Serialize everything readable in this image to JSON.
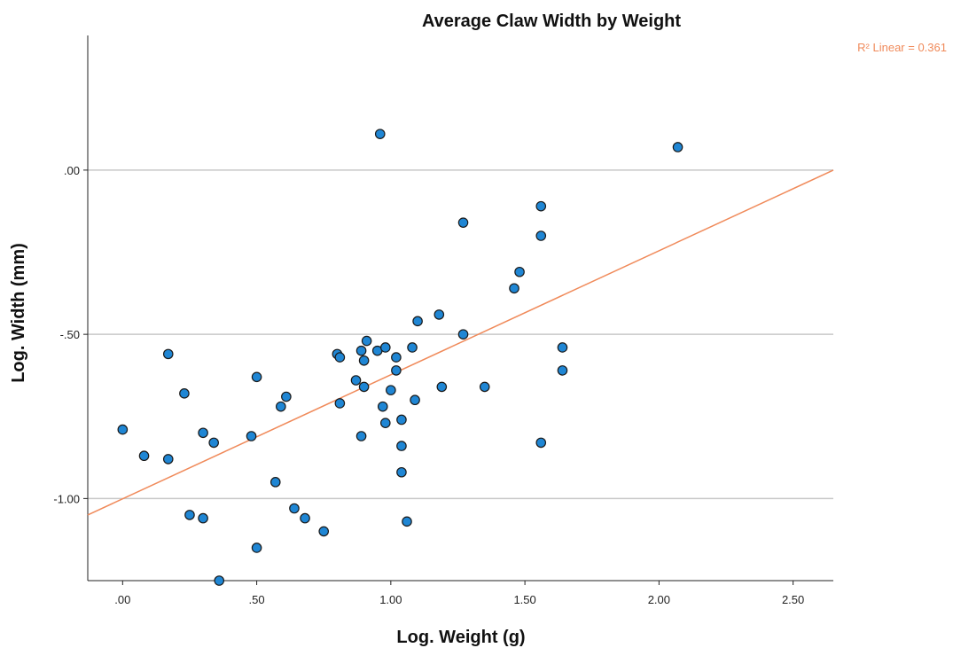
{
  "chart_data": {
    "type": "scatter",
    "title": "Average Claw Width by Weight",
    "xlabel": "Log. Weight (g)",
    "ylabel": "Log. Width (mm)",
    "xlim": [
      -0.13,
      2.65
    ],
    "ylim": [
      -1.25,
      0.41
    ],
    "x_ticks": [
      0.0,
      0.5,
      1.0,
      1.5,
      2.0,
      2.5
    ],
    "x_tick_labels": [
      ".00",
      ".50",
      "1.00",
      "1.50",
      "2.00",
      "2.50"
    ],
    "y_ticks": [
      0.0,
      -0.5,
      -1.0
    ],
    "y_tick_labels": [
      ".00",
      "-.50",
      "-1.00"
    ],
    "grid": "horizontal",
    "point_color": "#1f86d4",
    "point_edge_color": "#1a1a1a",
    "fit_line": {
      "type": "linear",
      "label": "R² Linear = 0.361",
      "color": "#f08a5a",
      "x": [
        -0.13,
        2.65
      ],
      "y": [
        -1.05,
        0.0
      ]
    },
    "points": [
      {
        "x": 0.0,
        "y": -0.79
      },
      {
        "x": 0.08,
        "y": -0.87
      },
      {
        "x": 0.17,
        "y": -0.88
      },
      {
        "x": 0.17,
        "y": -0.56
      },
      {
        "x": 0.23,
        "y": -0.68
      },
      {
        "x": 0.25,
        "y": -1.05
      },
      {
        "x": 0.3,
        "y": -1.06
      },
      {
        "x": 0.3,
        "y": -0.8
      },
      {
        "x": 0.34,
        "y": -0.83
      },
      {
        "x": 0.36,
        "y": -1.25
      },
      {
        "x": 0.48,
        "y": -0.81
      },
      {
        "x": 0.5,
        "y": -1.15
      },
      {
        "x": 0.5,
        "y": -0.63
      },
      {
        "x": 0.57,
        "y": -0.95
      },
      {
        "x": 0.59,
        "y": -0.72
      },
      {
        "x": 0.61,
        "y": -0.69
      },
      {
        "x": 0.64,
        "y": -1.03
      },
      {
        "x": 0.68,
        "y": -1.06
      },
      {
        "x": 0.75,
        "y": -1.1
      },
      {
        "x": 0.8,
        "y": -0.56
      },
      {
        "x": 0.81,
        "y": -0.57
      },
      {
        "x": 0.81,
        "y": -0.71
      },
      {
        "x": 0.87,
        "y": -0.64
      },
      {
        "x": 0.89,
        "y": -0.55
      },
      {
        "x": 0.89,
        "y": -0.81
      },
      {
        "x": 0.9,
        "y": -0.58
      },
      {
        "x": 0.9,
        "y": -0.66
      },
      {
        "x": 0.91,
        "y": -0.52
      },
      {
        "x": 0.95,
        "y": -0.55
      },
      {
        "x": 0.96,
        "y": 0.11
      },
      {
        "x": 0.97,
        "y": -0.72
      },
      {
        "x": 0.98,
        "y": -0.54
      },
      {
        "x": 0.98,
        "y": -0.77
      },
      {
        "x": 1.0,
        "y": -0.67
      },
      {
        "x": 1.02,
        "y": -0.61
      },
      {
        "x": 1.02,
        "y": -0.57
      },
      {
        "x": 1.04,
        "y": -0.76
      },
      {
        "x": 1.04,
        "y": -0.84
      },
      {
        "x": 1.04,
        "y": -0.92
      },
      {
        "x": 1.06,
        "y": -1.07
      },
      {
        "x": 1.08,
        "y": -0.54
      },
      {
        "x": 1.09,
        "y": -0.7
      },
      {
        "x": 1.1,
        "y": -0.46
      },
      {
        "x": 1.18,
        "y": -0.44
      },
      {
        "x": 1.19,
        "y": -0.66
      },
      {
        "x": 1.27,
        "y": -0.16
      },
      {
        "x": 1.27,
        "y": -0.5
      },
      {
        "x": 1.35,
        "y": -0.66
      },
      {
        "x": 1.46,
        "y": -0.36
      },
      {
        "x": 1.48,
        "y": -0.31
      },
      {
        "x": 1.56,
        "y": -0.11
      },
      {
        "x": 1.56,
        "y": -0.2
      },
      {
        "x": 1.56,
        "y": -0.83
      },
      {
        "x": 1.64,
        "y": -0.54
      },
      {
        "x": 1.64,
        "y": -0.61
      },
      {
        "x": 2.07,
        "y": 0.07
      }
    ]
  }
}
